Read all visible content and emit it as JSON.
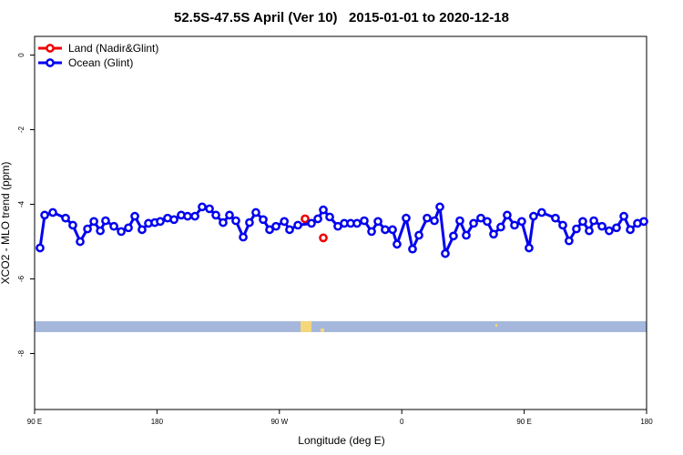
{
  "chart_data": {
    "type": "line",
    "title": "52.5S-47.5S April (Ver 10)   2015-01-01 to 2020-12-18",
    "x_label": "Longitude (deg E)",
    "y_label": "XCO2 - MLO trend (ppm)",
    "xlim": [
      90,
      540
    ],
    "ylim": [
      -9.5,
      0.5
    ],
    "xticks": [
      {
        "value": 90,
        "label": "90 E"
      },
      {
        "value": 180,
        "label": "180"
      },
      {
        "value": 270,
        "label": "90 W"
      },
      {
        "value": 360,
        "label": "0"
      },
      {
        "value": 450,
        "label": "90 E"
      },
      {
        "value": 540,
        "label": "180"
      }
    ],
    "yticks": [
      0,
      -2,
      -4,
      -6,
      -8
    ],
    "legend": "top-left",
    "series": [
      {
        "name": "Land (Nadir&Glint)",
        "color": "#ee0000",
        "line": false,
        "x": [
          288.9,
          302.3
        ],
        "values": [
          -4.39,
          -4.9
        ]
      },
      {
        "name": "Ocean (Glint)",
        "color": "#0000ee",
        "line": true,
        "x": [
          94,
          97.4,
          103.4,
          112.8,
          118.1,
          123.5,
          128.9,
          133.6,
          138.3,
          142.2,
          148.3,
          153.7,
          159,
          163.7,
          169,
          173.7,
          178.4,
          182.4,
          187.8,
          192.5,
          197.8,
          202.5,
          207.9,
          213.2,
          218.6,
          223.3,
          228.6,
          233.3,
          238,
          243.4,
          248,
          252.7,
          258.1,
          262.8,
          267.5,
          273.6,
          277.5,
          283.6,
          293.6,
          298.3,
          302.3,
          307,
          313,
          317.7,
          322.4,
          327.1,
          332.4,
          337.8,
          342.5,
          347.8,
          353.2,
          356.5,
          363.2,
          367.9,
          372.6,
          378.6,
          384,
          388,
          392,
          398,
          402.7,
          407.4,
          412.8,
          418.1,
          422.8,
          427.5,
          432.8,
          437.5,
          442.9,
          448.2,
          453.6,
          456.9,
          462.9,
          473,
          478.4,
          483,
          488.4,
          493.1,
          497.8,
          501.2,
          507.2,
          512.5,
          517.9,
          523.3,
          528,
          533.3,
          538
        ],
        "values": [
          -5.17,
          -4.29,
          -4.22,
          -4.37,
          -4.56,
          -5.0,
          -4.66,
          -4.46,
          -4.71,
          -4.44,
          -4.59,
          -4.73,
          -4.63,
          -4.32,
          -4.68,
          -4.51,
          -4.49,
          -4.46,
          -4.37,
          -4.41,
          -4.29,
          -4.32,
          -4.32,
          -4.07,
          -4.12,
          -4.29,
          -4.49,
          -4.29,
          -4.44,
          -4.88,
          -4.49,
          -4.22,
          -4.41,
          -4.68,
          -4.59,
          -4.46,
          -4.68,
          -4.56,
          -4.51,
          -4.39,
          -4.15,
          -4.34,
          -4.59,
          -4.51,
          -4.51,
          -4.51,
          -4.44,
          -4.73,
          -4.46,
          -4.68,
          -4.68,
          -5.07,
          -4.37,
          -5.2,
          -4.83,
          -4.37,
          -4.44,
          -4.07,
          -5.32,
          -4.85,
          -4.44,
          -4.83,
          -4.51,
          -4.37,
          -4.46,
          -4.8,
          -4.61,
          -4.29,
          -4.56,
          -4.46,
          -5.17,
          -4.32,
          -4.22,
          -4.37,
          -4.56,
          -4.98,
          -4.66,
          -4.46,
          -4.71,
          -4.44,
          -4.59,
          -4.71,
          -4.63,
          -4.32,
          -4.68,
          -4.51,
          -4.46
        ]
      }
    ]
  }
}
